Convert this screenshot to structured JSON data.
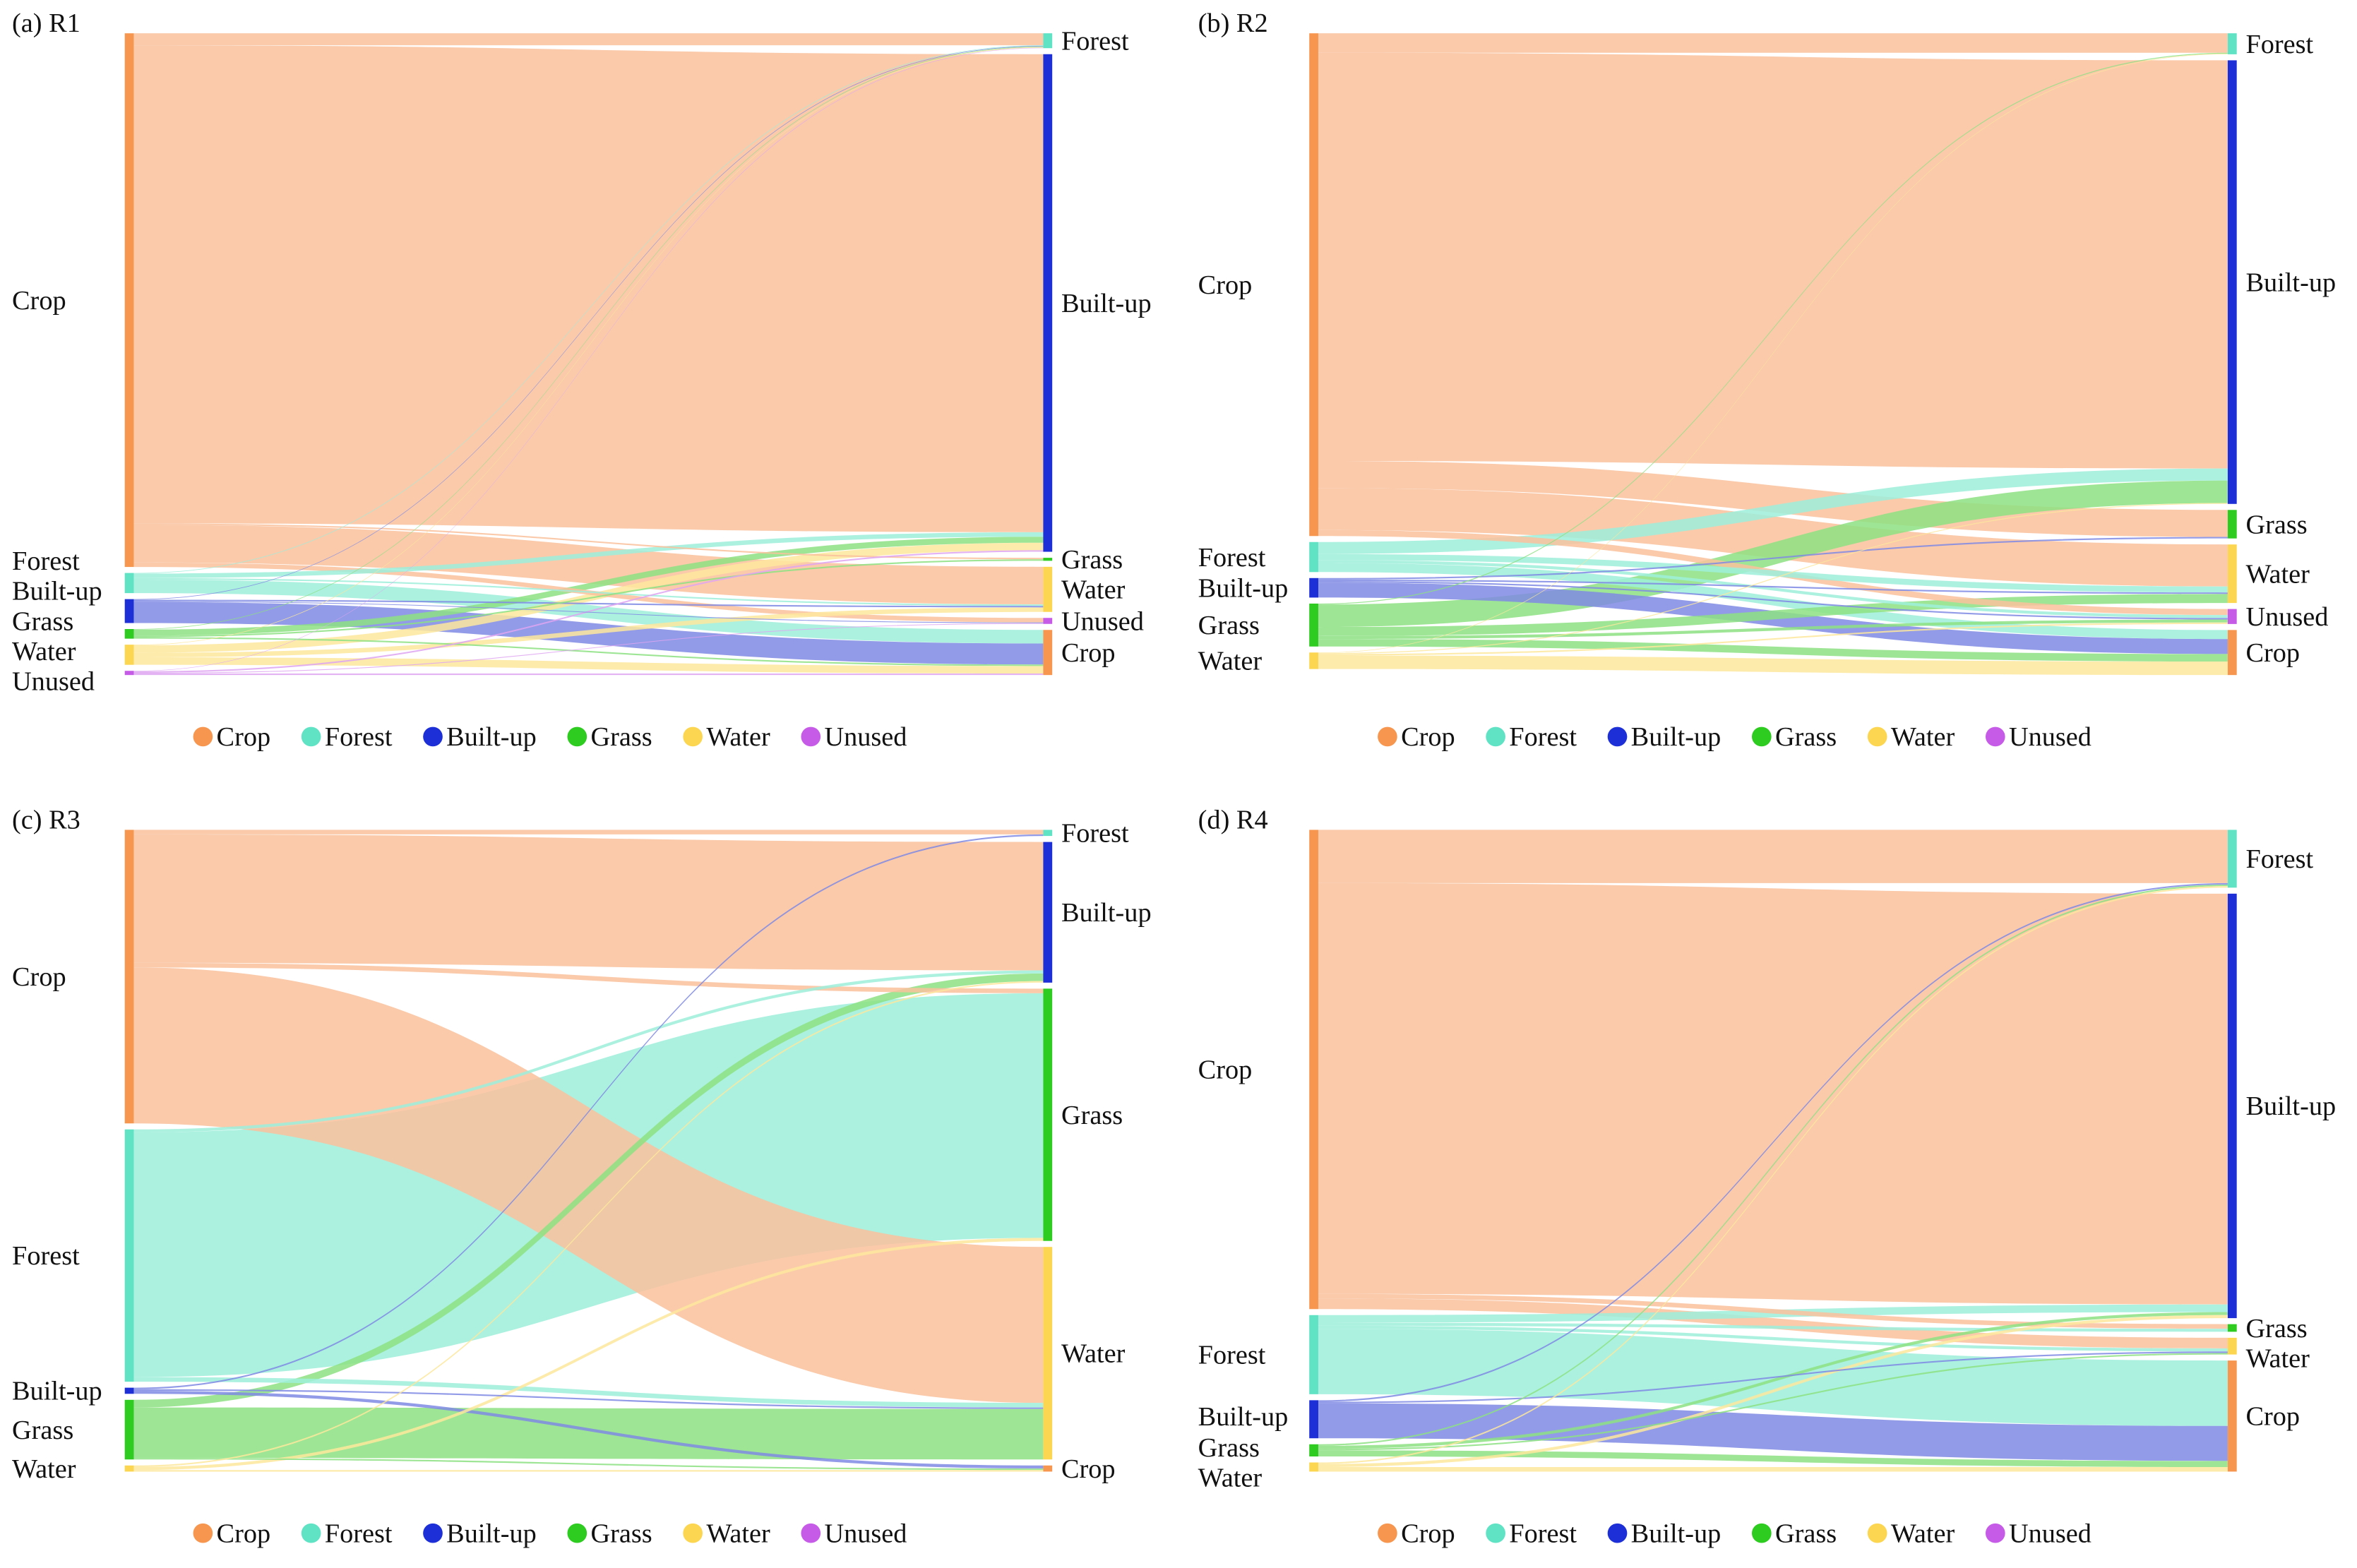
{
  "colors": {
    "Crop": {
      "node": "#f7964f",
      "link": "#f9c19c"
    },
    "Forest": {
      "node": "#5fe3c4",
      "link": "#9eeedb"
    },
    "Built-up": {
      "node": "#1d2fd6",
      "link": "#7f89e3"
    },
    "Grass": {
      "node": "#2ecb20",
      "link": "#8de282"
    },
    "Water": {
      "node": "#fcd651",
      "link": "#fde79c"
    },
    "Unused": {
      "node": "#c65be8",
      "link": "#dea5f1"
    }
  },
  "chart_data": [
    {
      "type": "sankey",
      "title": "(a) R1",
      "left_nodes": [
        "Crop",
        "Forest",
        "Built-up",
        "Grass",
        "Water",
        "Unused"
      ],
      "right_nodes": [
        "Forest",
        "Built-up",
        "Grass",
        "Water",
        "Unused",
        "Crop"
      ],
      "legend": [
        "Crop",
        "Forest",
        "Built-up",
        "Grass",
        "Water",
        "Unused"
      ],
      "links": [
        [
          "Crop",
          "Forest",
          8
        ],
        [
          "Crop",
          "Built-up",
          318
        ],
        [
          "Crop",
          "Grass",
          1
        ],
        [
          "Crop",
          "Water",
          25
        ],
        [
          "Crop",
          "Unused",
          3
        ],
        [
          "Forest",
          "Forest",
          0.4
        ],
        [
          "Forest",
          "Built-up",
          3
        ],
        [
          "Forest",
          "Water",
          1
        ],
        [
          "Forest",
          "Crop",
          9
        ],
        [
          "Built-up",
          "Forest",
          0.4
        ],
        [
          "Built-up",
          "Water",
          1
        ],
        [
          "Built-up",
          "Unused",
          0.5
        ],
        [
          "Built-up",
          "Crop",
          14
        ],
        [
          "Grass",
          "Forest",
          0.4
        ],
        [
          "Grass",
          "Built-up",
          4
        ],
        [
          "Grass",
          "Grass",
          1
        ],
        [
          "Grass",
          "Crop",
          1
        ],
        [
          "Water",
          "Forest",
          0.4
        ],
        [
          "Water",
          "Built-up",
          5
        ],
        [
          "Water",
          "Water",
          3
        ],
        [
          "Water",
          "Crop",
          5
        ],
        [
          "Unused",
          "Forest",
          0.3
        ],
        [
          "Unused",
          "Built-up",
          1
        ],
        [
          "Unused",
          "Unused",
          0.5
        ],
        [
          "Unused",
          "Crop",
          1
        ]
      ]
    },
    {
      "type": "sankey",
      "title": "(b) R2",
      "left_nodes": [
        "Crop",
        "Forest",
        "Built-up",
        "Grass",
        "Water"
      ],
      "right_nodes": [
        "Forest",
        "Built-up",
        "Grass",
        "Water",
        "Unused",
        "Crop"
      ],
      "legend": [
        "Crop",
        "Forest",
        "Built-up",
        "Grass",
        "Water",
        "Unused"
      ],
      "links": [
        [
          "Crop",
          "Forest",
          13
        ],
        [
          "Crop",
          "Built-up",
          272
        ],
        [
          "Crop",
          "Grass",
          18
        ],
        [
          "Crop",
          "Water",
          28
        ],
        [
          "Crop",
          "Unused",
          4
        ],
        [
          "Forest",
          "Built-up",
          8
        ],
        [
          "Forest",
          "Water",
          4
        ],
        [
          "Forest",
          "Unused",
          2
        ],
        [
          "Forest",
          "Crop",
          6
        ],
        [
          "Built-up",
          "Grass",
          1
        ],
        [
          "Built-up",
          "Water",
          1
        ],
        [
          "Built-up",
          "Unused",
          1
        ],
        [
          "Built-up",
          "Crop",
          10
        ],
        [
          "Grass",
          "Forest",
          0.6
        ],
        [
          "Grass",
          "Built-up",
          15
        ],
        [
          "Grass",
          "Water",
          6
        ],
        [
          "Grass",
          "Unused",
          2
        ],
        [
          "Grass",
          "Crop",
          5
        ],
        [
          "Water",
          "Forest",
          0.4
        ],
        [
          "Water",
          "Built-up",
          0.6
        ],
        [
          "Water",
          "Unused",
          1
        ],
        [
          "Water",
          "Crop",
          9
        ]
      ]
    },
    {
      "type": "sankey",
      "title": "(c) R3",
      "left_nodes": [
        "Crop",
        "Forest",
        "Built-up",
        "Grass",
        "Water"
      ],
      "right_nodes": [
        "Forest",
        "Built-up",
        "Grass",
        "Water",
        "Crop"
      ],
      "legend": [
        "Crop",
        "Forest",
        "Built-up",
        "Grass",
        "Water",
        "Unused"
      ],
      "links": [
        [
          "Crop",
          "Forest",
          3
        ],
        [
          "Crop",
          "Built-up",
          84
        ],
        [
          "Crop",
          "Grass",
          3
        ],
        [
          "Crop",
          "Water",
          102
        ],
        [
          "Forest",
          "Built-up",
          2
        ],
        [
          "Forest",
          "Grass",
          160
        ],
        [
          "Forest",
          "Water",
          3
        ],
        [
          "Built-up",
          "Forest",
          1
        ],
        [
          "Built-up",
          "Water",
          1
        ],
        [
          "Built-up",
          "Crop",
          2
        ],
        [
          "Grass",
          "Built-up",
          5
        ],
        [
          "Grass",
          "Water",
          33
        ],
        [
          "Grass",
          "Crop",
          1
        ],
        [
          "Water",
          "Built-up",
          1
        ],
        [
          "Water",
          "Grass",
          2
        ],
        [
          "Water",
          "Crop",
          1
        ]
      ]
    },
    {
      "type": "sankey",
      "title": "(d) R4",
      "left_nodes": [
        "Crop",
        "Forest",
        "Built-up",
        "Grass",
        "Water"
      ],
      "right_nodes": [
        "Forest",
        "Built-up",
        "Grass",
        "Water",
        "Crop"
      ],
      "legend": [
        "Crop",
        "Forest",
        "Built-up",
        "Grass",
        "Water",
        "Unused"
      ],
      "links": [
        [
          "Crop",
          "Forest",
          35
        ],
        [
          "Crop",
          "Built-up",
          270
        ],
        [
          "Crop",
          "Grass",
          3
        ],
        [
          "Crop",
          "Water",
          7
        ],
        [
          "Forest",
          "Built-up",
          5
        ],
        [
          "Forest",
          "Grass",
          2
        ],
        [
          "Forest",
          "Water",
          2
        ],
        [
          "Forest",
          "Crop",
          43
        ],
        [
          "Built-up",
          "Forest",
          1
        ],
        [
          "Built-up",
          "Water",
          1
        ],
        [
          "Built-up",
          "Crop",
          23
        ],
        [
          "Grass",
          "Forest",
          1
        ],
        [
          "Grass",
          "Built-up",
          2
        ],
        [
          "Grass",
          "Water",
          1
        ],
        [
          "Grass",
          "Crop",
          4
        ],
        [
          "Water",
          "Forest",
          1
        ],
        [
          "Water",
          "Built-up",
          2
        ],
        [
          "Water",
          "Crop",
          3
        ]
      ]
    }
  ]
}
